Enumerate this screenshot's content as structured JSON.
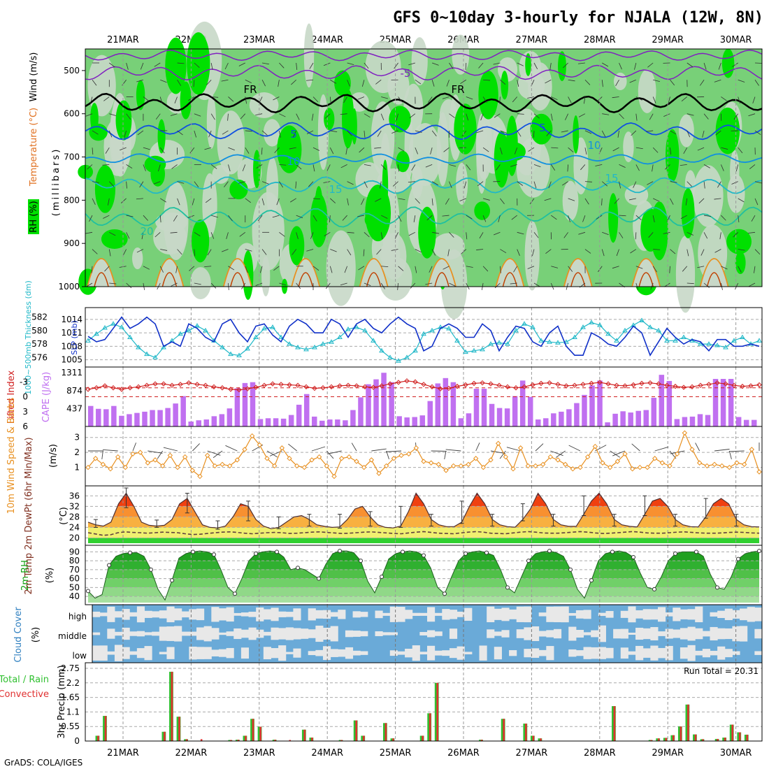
{
  "title": "GFS 0~10day 3-hourly for NJALA (12W, 8N)",
  "credit": "GrADS: COLA/IGES",
  "dates": [
    "21MAR",
    "22MAR",
    "23MAR",
    "24MAR",
    "25MAR",
    "26MAR",
    "27MAR",
    "28MAR",
    "29MAR",
    "30MAR"
  ],
  "colors": {
    "rh_light": "#c8d8c8",
    "rh_mid": "#78d078",
    "rh_high": "#00e000",
    "slp": "#1030c8",
    "thickness": "#20b8c8",
    "li": "#d02020",
    "cape": "#c070f0",
    "wind": "#e89020",
    "barb": "#404040",
    "temp_hot": "#e02000",
    "dew": "#604040",
    "rh2m": "#10a010",
    "cloud_blue": "#6aaad8",
    "cloud_white": "#e8e8e8",
    "precip_total": "#30c030",
    "precip_conv": "#e03030"
  },
  "panels": {
    "upper": {
      "y_label": "(millibars)",
      "legend": [
        "Wind (m/s)",
        "Temperature (°C)",
        "RH (%)"
      ],
      "ylevels": [
        500,
        600,
        700,
        800,
        900,
        1000
      ],
      "isotherm_labels": [
        "-5",
        "FR",
        "FR",
        "5",
        "5",
        "10",
        "10",
        "15",
        "15",
        "20"
      ]
    },
    "slp": {
      "left_label": "1000~500mb Thickness (dm)",
      "right_label": "SLP (mb)"
    },
    "cape": {
      "left_label": "Lifted Index",
      "right_label": "CAPE (J/kg)"
    },
    "wind10": {
      "label": "10m Wind Speed & Barbs",
      "unit": "(m/s)"
    },
    "temp": {
      "label": "2m Temp 2m DewPt (6hr Min/Max)",
      "unit": "(°C)"
    },
    "rh": {
      "label": "2m RH",
      "unit": "(%)"
    },
    "cloud": {
      "label": "Cloud Cover",
      "unit": "(%)",
      "levels": [
        "high",
        "middle",
        "low"
      ]
    },
    "precip": {
      "label": "Total / Rain Convective",
      "y_label": "3hr Precip (mm)",
      "run_total_text": "Run Total = 20.31"
    }
  },
  "chart_data": [
    {
      "type": "line",
      "title": "SLP (mb) and 1000~500mb Thickness (dm)",
      "series": [
        {
          "name": "SLP (mb)",
          "values": [
            1010.2,
            1009,
            1009.5,
            1012,
            1014.5,
            1012,
            1013,
            1014.5,
            1013,
            1008,
            1009,
            1008,
            1013,
            1012,
            1010,
            1009,
            1013,
            1014,
            1011,
            1009,
            1012.5,
            1013,
            1010.5,
            1009,
            1012.5,
            1014,
            1013,
            1011,
            1011,
            1014,
            1013,
            1010,
            1013,
            1014,
            1012,
            1011,
            1013,
            1014.5,
            1013,
            1012,
            1007,
            1008,
            1012,
            1013,
            1012,
            1010,
            1010,
            1013,
            1011.5,
            1007,
            1010,
            1012.5,
            1012,
            1009,
            1008,
            1011,
            1012.5,
            1008,
            1006,
            1006,
            1011,
            1010,
            1008.5,
            1008,
            1010,
            1012.5,
            1011,
            1006,
            1009,
            1012,
            1010,
            1008.5,
            1009.5,
            1009,
            1007,
            1009.5,
            1009.5,
            1008,
            1008,
            1008.5,
            1008
          ]
        },
        {
          "name": "1000~500mb Thickness (dm)",
          "values": [
            578.5,
            579.5,
            580.4,
            581,
            580.5,
            579,
            577.5,
            576.5,
            576,
            577.5,
            578.5,
            579.5,
            580,
            580.7,
            580,
            578.5,
            577.5,
            576.5,
            576.3,
            577.3,
            579,
            580.3,
            580.5,
            579,
            578,
            577.5,
            577.2,
            577.5,
            578,
            578.3,
            579,
            580.2,
            580.5,
            580,
            578.5,
            577,
            576,
            575.5,
            576,
            577,
            579.5,
            580,
            580.5,
            580.3,
            578.5,
            576.8,
            577,
            577.2,
            578,
            578.2,
            578,
            580,
            581,
            580.5,
            578.5,
            578.3,
            578.2,
            578.3,
            579,
            580.5,
            581.2,
            580.8,
            579.5,
            578.5,
            580,
            580.8,
            581.5,
            580.5,
            580,
            578.5,
            578.5,
            579,
            578.5,
            578,
            578,
            577.8,
            577.5,
            578.5,
            579,
            578,
            578.5
          ]
        }
      ]
    },
    {
      "type": "bar",
      "title": "CAPE (J/kg) and Lifted Index",
      "series": [
        {
          "name": "CAPE (J/kg)",
          "values": [
            500,
            430,
            420,
            500,
            260,
            300,
            330,
            360,
            400,
            400,
            450,
            560,
            740,
            120,
            150,
            170,
            250,
            300,
            440,
            930,
            1060,
            1080,
            180,
            200,
            200,
            190,
            280,
            530,
            790,
            240,
            140,
            170,
            170,
            150,
            400,
            710,
            1030,
            1150,
            1310,
            1080,
            250,
            220,
            230,
            270,
            620,
            1050,
            1180,
            1080,
            200,
            320,
            920,
            920,
            550,
            450,
            440,
            740,
            1120,
            720,
            170,
            200,
            320,
            360,
            420,
            570,
            770,
            1000,
            1120,
            100,
            310,
            370,
            340,
            380,
            400,
            700,
            1260,
            1110,
            180,
            230,
            240,
            300,
            280,
            1160,
            1160,
            1160,
            230,
            160,
            160
          ]
        },
        {
          "name": "Lifted Index",
          "values": [
            -1.5,
            -1.8,
            -2.2,
            -1.8,
            -1.5,
            -1.8,
            -2.0,
            -2.3,
            -2.6,
            -2.6,
            -2.3,
            -2.5,
            -2.8,
            -2.5,
            -2.3,
            -2.0,
            -1.8,
            -1.5,
            -1.4,
            -1.6,
            -1.9,
            -2.3,
            -2.6,
            -2.5,
            -2.4,
            -2.3,
            -2.0,
            -1.7,
            -1.8,
            -2.0,
            -2.2,
            -2.3,
            -2.2,
            -2.0,
            -1.9,
            -2.2,
            -2.6,
            -2.9,
            -3.2,
            -3.0,
            -2.5,
            -2.0,
            -1.6,
            -1.7,
            -2.1,
            -2.4,
            -2.7,
            -2.8,
            -2.6,
            -2.3,
            -2.0,
            -1.8,
            -2.0,
            -2.4,
            -2.7,
            -2.8,
            -2.5,
            -2.2,
            -2.3,
            -2.5,
            -2.7,
            -2.9,
            -2.6,
            -2.3,
            -2.2,
            -2.4,
            -2.7,
            -2.8,
            -2.6,
            -2.3,
            -2.1,
            -1.9,
            -2.0,
            -2.3,
            -2.5,
            -2.8,
            -2.6,
            -2.3,
            -2.1,
            -2.2,
            -2.4
          ]
        }
      ]
    },
    {
      "type": "line",
      "title": "10m Wind Speed (m/s)",
      "series": [
        {
          "name": "10m Wind Speed",
          "values": [
            1.0,
            1.6,
            1.2,
            0.9,
            1.7,
            1.0,
            1.9,
            2.0,
            1.3,
            1.5,
            1.1,
            1.8,
            1.0,
            1.7,
            0.8,
            0.4,
            1.8,
            1.1,
            1.2,
            1.1,
            1.5,
            2.2,
            3.1,
            2.5,
            1.6,
            1.1,
            2.3,
            1.6,
            1.1,
            1.0,
            1.5,
            1.7,
            1.1,
            0.4,
            1.6,
            1.7,
            1.4,
            1.0,
            1.5,
            0.6,
            1.1,
            1.6,
            1.8,
            1.9,
            2.3,
            1.4,
            1.3,
            1.2,
            0.8,
            1.1,
            1.1,
            1.2,
            1.6,
            1.0,
            1.5,
            2.6,
            1.7,
            0.9,
            2.3,
            1.1,
            1.1,
            1.2,
            1.7,
            1.5,
            1.2,
            0.9,
            1.0,
            1.7,
            2.4,
            1.3,
            1.0,
            1.4,
            1.9,
            0.9,
            1.0,
            1.0,
            1.6,
            1.3,
            1.1,
            1.9,
            3.3,
            2.2,
            1.3,
            1.1,
            1.2,
            1.1,
            1.0,
            1.3,
            1.2,
            2.2,
            0.7
          ]
        }
      ]
    },
    {
      "type": "area",
      "title": "2m Temp and 2m DewPt (°C)",
      "series": [
        {
          "name": "2m Temp",
          "values": [
            26,
            25,
            24.5,
            26,
            33,
            37,
            32,
            26,
            24.8,
            24.5,
            24.8,
            27,
            33,
            35,
            30,
            25,
            24,
            23.8,
            24.5,
            28,
            33,
            32,
            27,
            24.5,
            23.5,
            24,
            26,
            28,
            28.5,
            27,
            25,
            24.4,
            24,
            24.2,
            27,
            31,
            32,
            28,
            25,
            24,
            23.8,
            24.5,
            30,
            37,
            33,
            27,
            25,
            24.3,
            24.3,
            26,
            32,
            37,
            33,
            27,
            25,
            24.3,
            24.1,
            27,
            31,
            37,
            33,
            27,
            25,
            24.4,
            24.4,
            29,
            34,
            37,
            33,
            27,
            25,
            24.4,
            24.2,
            29,
            34,
            35,
            32,
            27,
            25,
            24.3,
            24.2,
            28,
            33,
            35,
            33,
            27,
            25,
            24.3,
            24.2
          ]
        },
        {
          "name": "2m DewPt",
          "values": [
            22,
            21.5,
            21,
            21.2,
            22,
            22.3,
            22.1,
            22,
            21.8,
            22,
            22.2,
            22.1,
            22,
            21.6,
            21.3,
            21.4,
            21.7,
            22,
            22.2,
            22.3,
            22.1,
            21.8,
            21.6,
            21.8,
            22,
            22.1,
            22,
            21.7,
            21.8,
            22,
            22.2,
            22.3,
            22.1,
            21.9,
            21.7,
            21.8,
            22,
            22.2,
            22.3,
            22.1,
            21.9,
            21.7,
            21.6,
            21.9,
            22.2,
            22.4,
            22.1,
            21.8,
            21.7,
            21.6,
            21.9,
            22.2,
            22.4,
            22.2,
            21.8,
            21.7,
            21.6,
            21.9,
            22.2,
            22.4,
            22.2,
            21.9,
            21.8,
            21.8,
            22,
            22.2,
            22.4,
            22.2,
            21.9,
            21.7,
            21.8,
            22,
            22.2,
            22.4,
            22.2,
            21.9,
            21.8,
            21.8,
            22,
            22.2,
            22.3,
            22.1,
            21.9,
            21.8,
            21.8,
            21.9,
            22.1,
            22.2,
            22.1,
            21.9,
            21.8
          ]
        }
      ]
    },
    {
      "type": "area",
      "title": "2m RH (%)",
      "series": [
        {
          "name": "2m RH",
          "values": [
            46,
            38,
            42,
            75,
            85,
            88,
            89,
            89,
            85,
            70,
            48,
            36,
            58,
            83,
            88,
            90,
            91,
            90,
            87,
            70,
            50,
            43,
            60,
            80,
            88,
            90,
            91,
            90,
            84,
            70,
            72,
            70,
            65,
            60,
            76,
            88,
            91,
            91,
            89,
            80,
            57,
            44,
            62,
            82,
            88,
            90,
            91,
            90,
            86,
            72,
            50,
            43,
            62,
            80,
            88,
            90,
            91,
            89,
            86,
            70,
            50,
            44,
            62,
            80,
            88,
            90,
            91,
            89,
            85,
            70,
            48,
            38,
            58,
            80,
            88,
            90,
            91,
            89,
            84,
            66,
            50,
            48,
            62,
            80,
            88,
            90,
            90,
            90,
            85,
            65,
            50,
            48,
            62,
            82,
            88,
            90,
            91
          ]
        }
      ]
    },
    {
      "type": "bar",
      "title": "3hr Precip (mm)",
      "series": [
        {
          "name": "Total",
          "values": [
            0,
            0.2,
            0.95,
            0,
            0,
            0,
            0,
            0,
            0,
            0,
            0.35,
            2.62,
            0.92,
            0.07,
            0,
            0,
            0,
            0,
            0,
            0.04,
            0.05,
            0.2,
            0.84,
            0.54,
            0,
            0.05,
            0,
            0,
            0,
            0.43,
            0.13,
            0,
            0,
            0,
            0.04,
            0,
            0.78,
            0.2,
            0,
            0,
            0.68,
            0.1,
            0,
            0,
            0,
            0.2,
            1.05,
            2.2,
            0,
            0,
            0,
            0,
            0,
            0.05,
            0,
            0,
            0.84,
            0,
            0,
            0.66,
            0.2,
            0.1,
            0,
            0,
            0,
            0,
            0,
            0,
            0,
            0,
            0,
            1.32,
            0,
            0,
            0,
            0,
            0.04,
            0.1,
            0.12,
            0.22,
            0.55,
            1.38,
            0.25,
            0.07,
            0,
            0.08,
            0.13,
            0.62,
            0.33,
            0.24,
            0
          ]
        },
        {
          "name": "Convective",
          "values": [
            0,
            0.2,
            0.95,
            0,
            0,
            0,
            0,
            0,
            0,
            0,
            0.35,
            2.62,
            0.92,
            0.07,
            0,
            0.07,
            0,
            0,
            0,
            0.04,
            0.05,
            0.2,
            0.84,
            0.54,
            0,
            0.05,
            0,
            0.04,
            0,
            0.43,
            0.13,
            0,
            0,
            0,
            0.04,
            0,
            0.78,
            0.2,
            0,
            0,
            0.68,
            0.1,
            0,
            0,
            0,
            0.2,
            1.05,
            2.2,
            0,
            0,
            0,
            0,
            0,
            0.05,
            0,
            0,
            0.84,
            0,
            0,
            0.66,
            0.2,
            0.1,
            0,
            0,
            0,
            0,
            0,
            0,
            0,
            0,
            0,
            1.32,
            0,
            0,
            0,
            0,
            0.04,
            0.1,
            0.12,
            0.22,
            0.55,
            1.38,
            0.25,
            0.07,
            0,
            0.08,
            0.13,
            0.62,
            0.33,
            0.24,
            0
          ]
        }
      ]
    }
  ]
}
